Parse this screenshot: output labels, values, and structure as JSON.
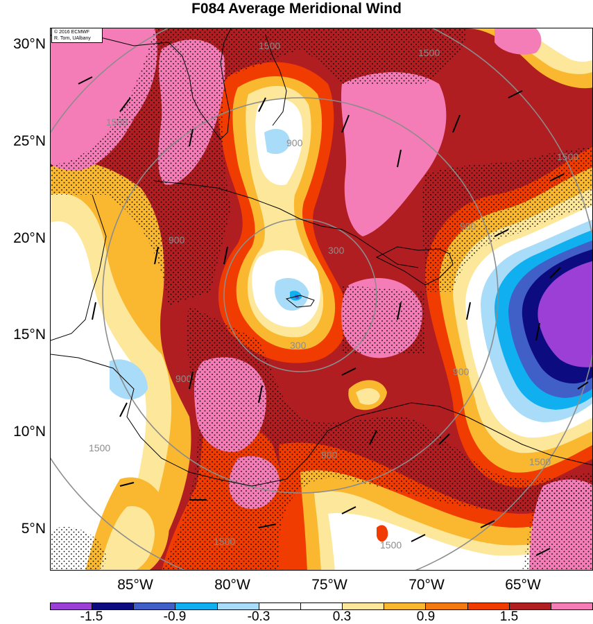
{
  "title": "F084 Average Meridional Wind",
  "copyright": {
    "line1": "© 2016 ECMWF",
    "line2": "R. Torn, UAlbany"
  },
  "lat_labels": [
    "30°N",
    "25°N",
    "20°N",
    "15°N",
    "10°N",
    "5°N"
  ],
  "lon_labels": [
    "85°W",
    "80°W",
    "75°W",
    "70°W",
    "65°W"
  ],
  "colorbar": {
    "colors": [
      "#9b3fd6",
      "#0c0c80",
      "#4060c8",
      "#10b0f0",
      "#a8dcf8",
      "#ffffff",
      "#ffffff",
      "#fde79a",
      "#f9b830",
      "#f47a10",
      "#f03c00",
      "#b01e22",
      "#f47db8"
    ],
    "tick_labels": [
      "-1.5",
      "-0.9",
      "-0.3",
      "0.3",
      "0.9",
      "1.5"
    ]
  },
  "range_ring_labels": [
    "300",
    "900",
    "1500"
  ],
  "wind_field": {
    "variable": "average meridional wind",
    "lead_time": "F084"
  }
}
